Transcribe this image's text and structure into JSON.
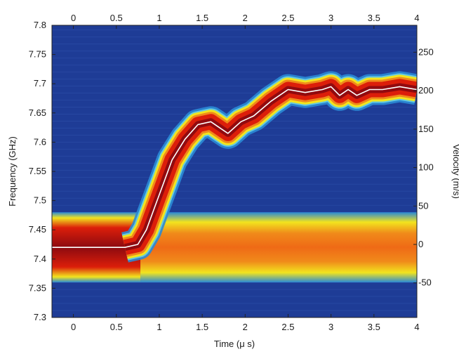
{
  "chart_data": {
    "type": "heatmap",
    "title": "",
    "xlabel": "Time (μ s)",
    "ylabel": "Frequency (GHz)",
    "y2label": "Velocity (m/s)",
    "xlim": [
      -0.25,
      4.0
    ],
    "ylim": [
      7.3,
      7.8
    ],
    "y2lim": [
      -95,
      285
    ],
    "x_ticks": [
      0,
      0.5,
      1,
      1.5,
      2,
      2.5,
      3,
      3.5,
      4
    ],
    "x_tick_labels": [
      "0",
      "0.5",
      "1",
      "1.5",
      "2",
      "2.5",
      "3",
      "3.5",
      "4"
    ],
    "y_ticks": [
      7.3,
      7.35,
      7.4,
      7.45,
      7.5,
      7.55,
      7.6,
      7.65,
      7.7,
      7.75,
      7.8
    ],
    "y_tick_labels": [
      "7.3",
      "7.35",
      "7.4",
      "7.45",
      "7.5",
      "7.55",
      "7.6",
      "7.65",
      "7.7",
      "7.75",
      "7.8"
    ],
    "y2_ticks": [
      -50,
      0,
      50,
      100,
      150,
      200,
      250
    ],
    "y2_tick_labels": [
      "-50",
      "0",
      "50",
      "100",
      "150",
      "200",
      "250"
    ],
    "colormap": "jet",
    "colors": {
      "background": "#1e3c96",
      "low": "#2a8ad6",
      "mid": "#f2e41e",
      "high": "#dc1e0a",
      "peak": "#8c0a10",
      "ridge_line": "#ffffff"
    },
    "static_band": {
      "center_freq_ghz": 7.425,
      "freq_low_ghz": 7.36,
      "freq_high_ghz": 7.48,
      "x_start": -0.25,
      "x_end": 4.0
    },
    "ridge_series": {
      "name": "",
      "x": [
        -0.25,
        0.2,
        0.6,
        0.75,
        0.85,
        0.95,
        1.05,
        1.15,
        1.3,
        1.45,
        1.6,
        1.75,
        1.8,
        1.95,
        2.1,
        2.3,
        2.5,
        2.7,
        2.9,
        3.0,
        3.1,
        3.2,
        3.3,
        3.45,
        3.6,
        3.8,
        4.0
      ],
      "y": [
        7.42,
        7.42,
        7.42,
        7.425,
        7.45,
        7.49,
        7.53,
        7.57,
        7.605,
        7.63,
        7.635,
        7.62,
        7.615,
        7.635,
        7.645,
        7.67,
        7.69,
        7.685,
        7.69,
        7.695,
        7.68,
        7.69,
        7.68,
        7.69,
        7.69,
        7.695,
        7.69
      ]
    }
  }
}
